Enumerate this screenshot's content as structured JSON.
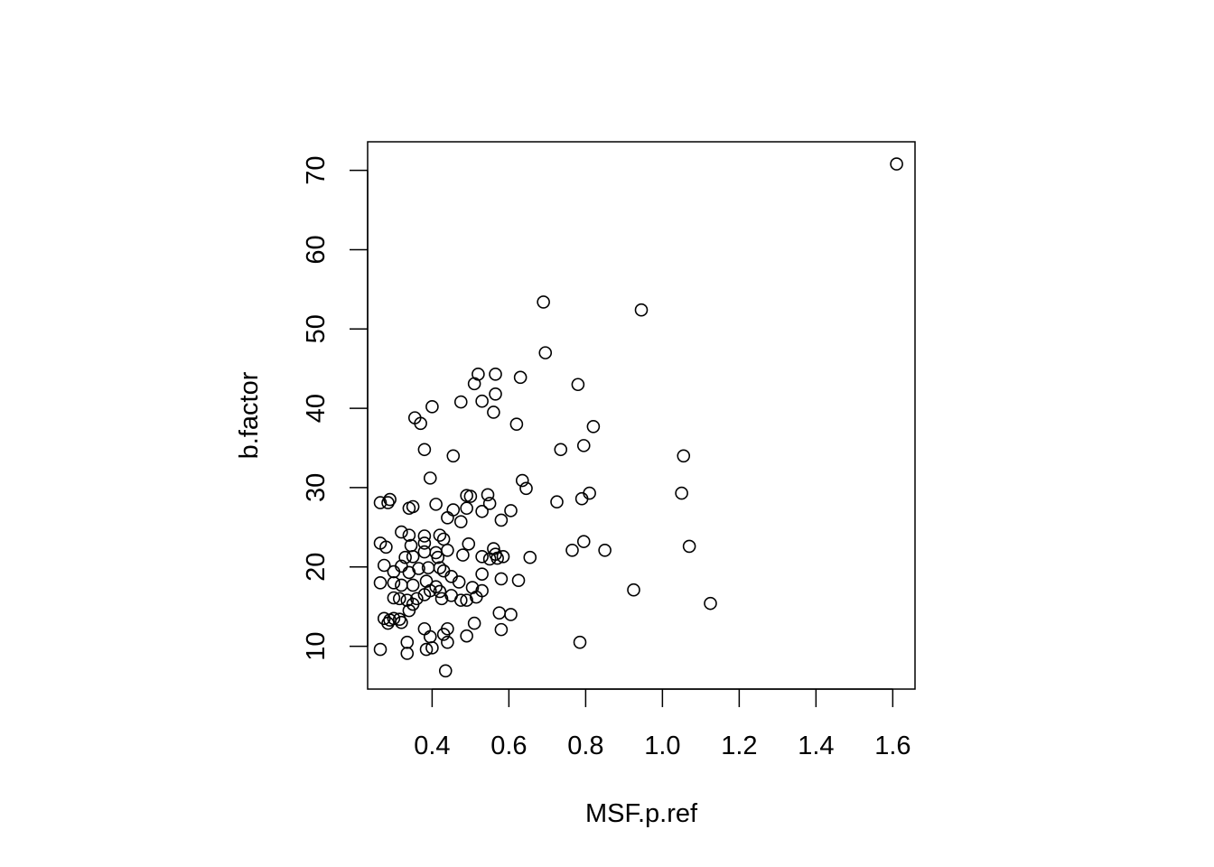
{
  "chart_data": {
    "type": "scatter",
    "title": "",
    "xlabel": "MSF.p.ref",
    "ylabel": "b.factor",
    "xlim": [
      0.232,
      1.658
    ],
    "ylim": [
      4.6,
      73.6
    ],
    "xticks": [
      0.4,
      0.6,
      0.8,
      1.0,
      1.2,
      1.4,
      1.6
    ],
    "xtick_labels": [
      "0.4",
      "0.6",
      "0.8",
      "1.0",
      "1.2",
      "1.4",
      "1.6"
    ],
    "yticks": [
      10,
      20,
      30,
      40,
      50,
      60,
      70
    ],
    "ytick_labels": [
      "10",
      "20",
      "30",
      "40",
      "50",
      "60",
      "70"
    ],
    "grid": false,
    "legend": "none",
    "marker": "open-circle",
    "color": "#000000",
    "points": [
      [
        1.61,
        70.8
      ],
      [
        0.69,
        53.4
      ],
      [
        0.945,
        52.4
      ],
      [
        0.695,
        47.0
      ],
      [
        0.52,
        44.3
      ],
      [
        0.565,
        44.3
      ],
      [
        0.63,
        43.9
      ],
      [
        0.51,
        43.1
      ],
      [
        0.78,
        43.0
      ],
      [
        0.565,
        41.8
      ],
      [
        0.53,
        40.9
      ],
      [
        0.475,
        40.8
      ],
      [
        0.4,
        40.2
      ],
      [
        0.56,
        39.5
      ],
      [
        0.355,
        38.8
      ],
      [
        0.37,
        38.1
      ],
      [
        0.62,
        38.0
      ],
      [
        0.82,
        37.7
      ],
      [
        0.795,
        35.3
      ],
      [
        0.735,
        34.8
      ],
      [
        0.38,
        34.8
      ],
      [
        0.455,
        34.0
      ],
      [
        1.055,
        34.0
      ],
      [
        0.395,
        31.2
      ],
      [
        0.635,
        30.9
      ],
      [
        0.645,
        29.9
      ],
      [
        0.81,
        29.3
      ],
      [
        1.05,
        29.3
      ],
      [
        0.545,
        29.1
      ],
      [
        0.49,
        29.0
      ],
      [
        0.5,
        28.9
      ],
      [
        0.79,
        28.6
      ],
      [
        0.29,
        28.5
      ],
      [
        0.725,
        28.2
      ],
      [
        0.265,
        28.1
      ],
      [
        0.285,
        28.1
      ],
      [
        0.55,
        28.0
      ],
      [
        0.41,
        27.9
      ],
      [
        0.35,
        27.6
      ],
      [
        0.34,
        27.4
      ],
      [
        0.49,
        27.4
      ],
      [
        0.455,
        27.2
      ],
      [
        0.53,
        27.0
      ],
      [
        0.605,
        27.1
      ],
      [
        0.44,
        26.2
      ],
      [
        0.58,
        25.9
      ],
      [
        0.475,
        25.7
      ],
      [
        0.32,
        24.4
      ],
      [
        0.34,
        24.0
      ],
      [
        0.38,
        23.9
      ],
      [
        0.42,
        24.0
      ],
      [
        0.43,
        23.5
      ],
      [
        0.795,
        23.2
      ],
      [
        0.265,
        23.0
      ],
      [
        0.38,
        23.0
      ],
      [
        0.495,
        22.9
      ],
      [
        0.345,
        22.7
      ],
      [
        1.07,
        22.6
      ],
      [
        0.28,
        22.5
      ],
      [
        0.56,
        22.3
      ],
      [
        0.44,
        22.1
      ],
      [
        0.765,
        22.1
      ],
      [
        0.85,
        22.1
      ],
      [
        0.38,
        21.9
      ],
      [
        0.41,
        21.8
      ],
      [
        0.48,
        21.5
      ],
      [
        0.565,
        21.6
      ],
      [
        0.35,
        21.3
      ],
      [
        0.33,
        21.2
      ],
      [
        0.415,
        21.2
      ],
      [
        0.53,
        21.3
      ],
      [
        0.55,
        21.0
      ],
      [
        0.57,
        21.1
      ],
      [
        0.585,
        21.3
      ],
      [
        0.655,
        21.2
      ],
      [
        0.275,
        20.2
      ],
      [
        0.32,
        20.1
      ],
      [
        0.39,
        19.9
      ],
      [
        0.365,
        19.8
      ],
      [
        0.42,
        19.9
      ],
      [
        0.3,
        19.4
      ],
      [
        0.34,
        19.3
      ],
      [
        0.43,
        19.5
      ],
      [
        0.53,
        19.1
      ],
      [
        0.45,
        18.8
      ],
      [
        0.58,
        18.5
      ],
      [
        0.625,
        18.3
      ],
      [
        0.265,
        18.0
      ],
      [
        0.3,
        18.0
      ],
      [
        0.385,
        18.2
      ],
      [
        0.47,
        18.1
      ],
      [
        0.32,
        17.7
      ],
      [
        0.35,
        17.7
      ],
      [
        0.41,
        17.5
      ],
      [
        0.505,
        17.4
      ],
      [
        0.395,
        17.0
      ],
      [
        0.42,
        16.9
      ],
      [
        0.53,
        17.0
      ],
      [
        0.925,
        17.1
      ],
      [
        0.38,
        16.5
      ],
      [
        0.45,
        16.4
      ],
      [
        0.515,
        16.2
      ],
      [
        0.3,
        16.1
      ],
      [
        0.315,
        16.0
      ],
      [
        0.335,
        15.8
      ],
      [
        0.36,
        16.0
      ],
      [
        0.425,
        16.0
      ],
      [
        0.475,
        15.8
      ],
      [
        0.49,
        15.8
      ],
      [
        0.35,
        15.3
      ],
      [
        1.125,
        15.4
      ],
      [
        0.34,
        14.5
      ],
      [
        0.575,
        14.2
      ],
      [
        0.605,
        14.0
      ],
      [
        0.275,
        13.5
      ],
      [
        0.29,
        13.3
      ],
      [
        0.3,
        13.5
      ],
      [
        0.315,
        13.4
      ],
      [
        0.285,
        12.9
      ],
      [
        0.32,
        13.0
      ],
      [
        0.51,
        12.9
      ],
      [
        0.38,
        12.2
      ],
      [
        0.44,
        12.2
      ],
      [
        0.58,
        12.1
      ],
      [
        0.43,
        11.5
      ],
      [
        0.395,
        11.2
      ],
      [
        0.49,
        11.3
      ],
      [
        0.335,
        10.5
      ],
      [
        0.44,
        10.5
      ],
      [
        0.785,
        10.5
      ],
      [
        0.265,
        9.6
      ],
      [
        0.385,
        9.6
      ],
      [
        0.4,
        9.8
      ],
      [
        0.335,
        9.1
      ],
      [
        0.435,
        6.9
      ]
    ]
  }
}
